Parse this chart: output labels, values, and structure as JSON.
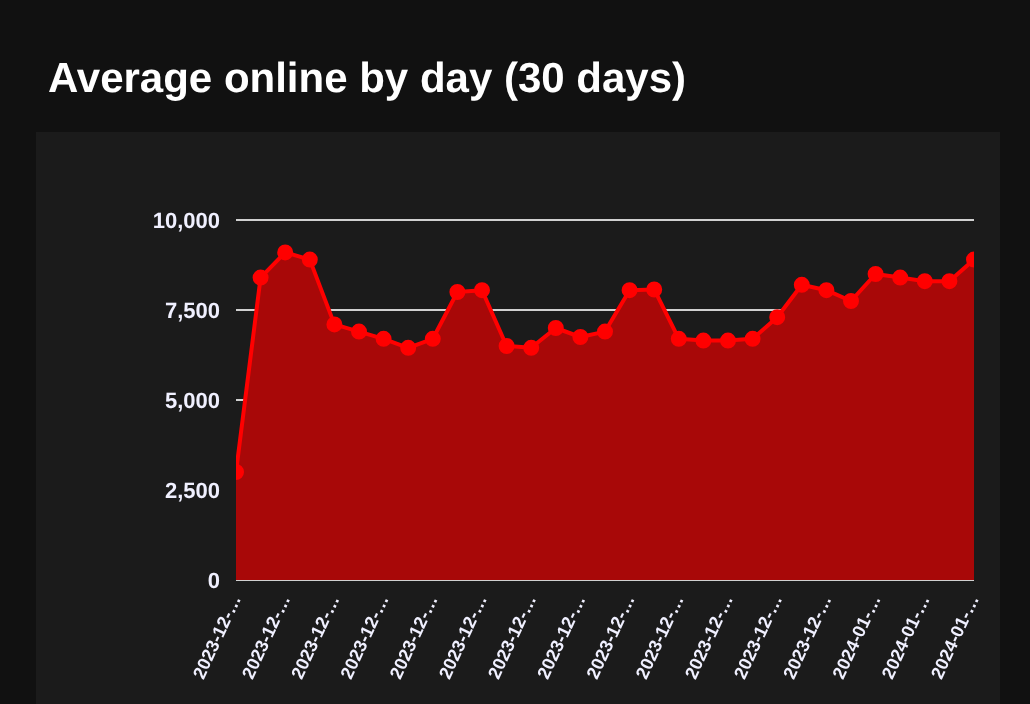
{
  "chart_data": {
    "type": "area",
    "title": "Average online by day (30 days)",
    "categories": [
      "2023-12-…",
      null,
      "2023-12-…",
      null,
      "2023-12-…",
      null,
      "2023-12-…",
      null,
      "2023-12-…",
      null,
      "2023-12-…",
      null,
      "2023-12-…",
      null,
      "2023-12-…",
      null,
      "2023-12-…",
      null,
      "2023-12-…",
      null,
      "2023-12-…",
      null,
      "2023-12-…",
      null,
      "2023-12-…",
      null,
      "2024-01-…",
      null,
      "2024-01-…",
      null,
      "2024-01-…"
    ],
    "series": [
      {
        "color": "#ff0000",
        "values": [
          3000,
          8400,
          9100,
          8900,
          7100,
          6900,
          6700,
          6450,
          6700,
          8000,
          8050,
          6500,
          6450,
          7000,
          6750,
          6900,
          8050,
          8070,
          6700,
          6650,
          6650,
          6700,
          7300,
          8200,
          8050,
          7750,
          8500,
          8400,
          8300,
          8300,
          8900
        ]
      }
    ],
    "ylim": [
      0,
      10000
    ],
    "yticks": [
      {
        "value": 0,
        "label": "0"
      },
      {
        "value": 2500,
        "label": "2,500"
      },
      {
        "value": 5000,
        "label": "5,000"
      },
      {
        "value": 7500,
        "label": "7,500"
      },
      {
        "value": 10000,
        "label": "10,000"
      }
    ],
    "grid": "y",
    "marker": "circle",
    "legend": false
  }
}
